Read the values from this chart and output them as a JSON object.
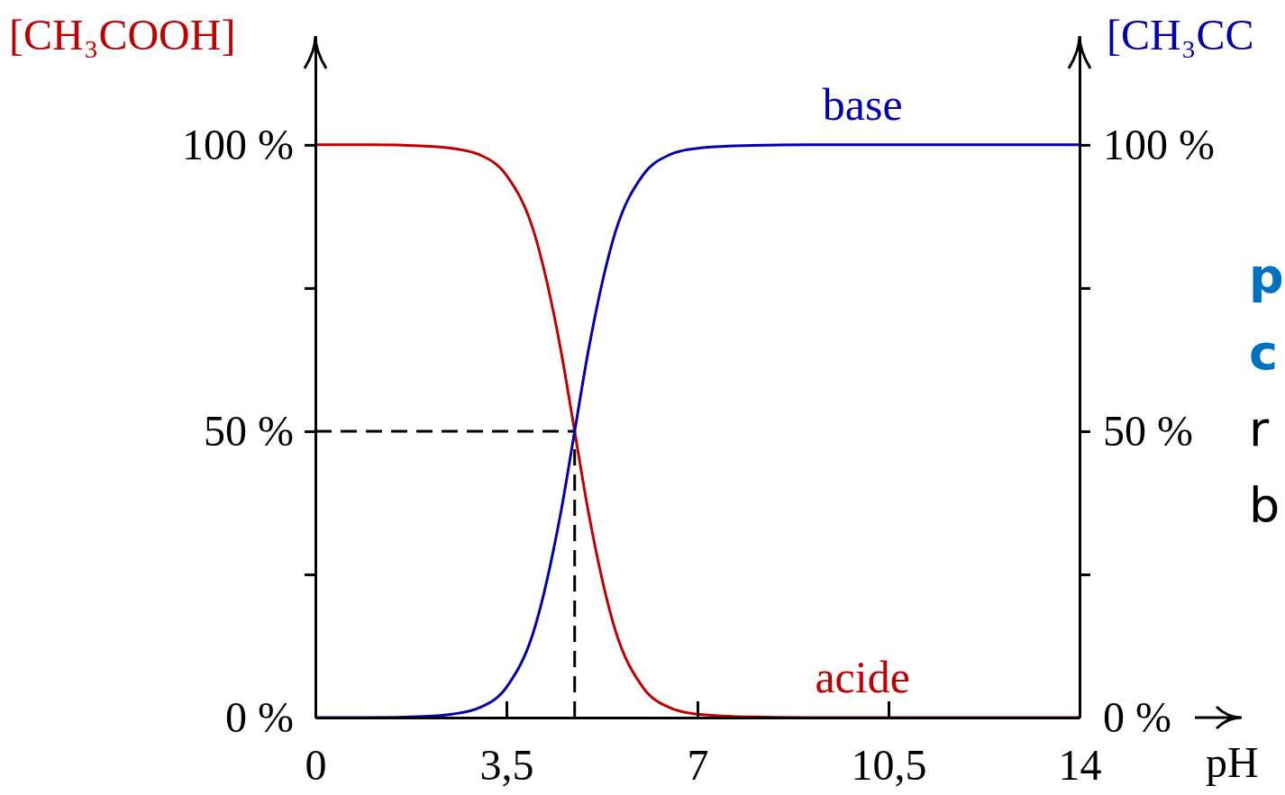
{
  "chart_data": {
    "type": "line",
    "xlabel": "pH",
    "ylabel": "[CH₃COOH]",
    "y2label": "[CH₃CC",
    "x": [
      0,
      1,
      2,
      2.5,
      3,
      3.5,
      4,
      4.5,
      4.75,
      5,
      5.5,
      6,
      6.5,
      7,
      8,
      9,
      14
    ],
    "series": [
      {
        "name": "acide",
        "color": "#c00000",
        "values": [
          100,
          100,
          99.8,
          99.4,
          98.3,
          94.7,
          84.9,
          64,
          50,
          36,
          15.1,
          5.3,
          1.7,
          0.6,
          0.1,
          0,
          0
        ]
      },
      {
        "name": "base",
        "color": "#0000b0",
        "values": [
          0,
          0,
          0.2,
          0.6,
          1.7,
          5.3,
          15.1,
          36,
          50,
          64,
          84.9,
          94.7,
          98.3,
          99.4,
          99.9,
          100,
          100
        ]
      }
    ],
    "xlim": [
      0,
      14
    ],
    "ylim": [
      0,
      119
    ],
    "y2lim": [
      0,
      119
    ],
    "xticks": [
      0,
      {
        "value": 3.5,
        "label": "3,5"
      },
      7,
      {
        "value": 10.5,
        "label": "10,5"
      },
      14
    ],
    "yticks": [
      {
        "value": 0,
        "label": "0 %"
      },
      {
        "value": 25,
        "label": null
      },
      {
        "value": 50,
        "label": "50 %"
      },
      {
        "value": 75,
        "label": null
      },
      {
        "value": 100,
        "label": "100 %"
      }
    ],
    "y2ticks": [
      {
        "value": 0,
        "label": "0 %"
      },
      {
        "value": 25,
        "label": null
      },
      {
        "value": 50,
        "label": "50 %"
      },
      {
        "value": 75,
        "label": null
      },
      {
        "value": 100,
        "label": "100 %"
      }
    ],
    "ref_lines": [
      {
        "axis": "y",
        "value": 50,
        "line_style": "dashed",
        "color": "#000000"
      },
      {
        "axis": "x",
        "value": 4.75,
        "line_style": "dashed",
        "color": "#000000"
      }
    ],
    "grid": false,
    "legend": false,
    "marker": "none",
    "line_style": "solid",
    "annotations": [
      "p",
      "c",
      "r",
      "b"
    ]
  }
}
